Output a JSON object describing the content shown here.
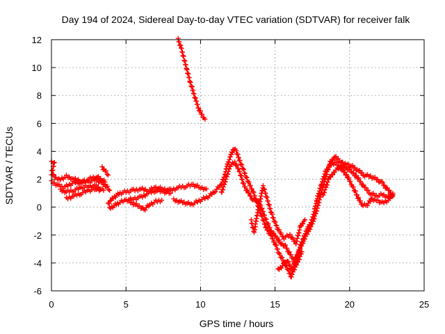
{
  "chart_data": {
    "type": "scatter",
    "title": "Day 194 of 2024, Sidereal Day-to-day VTEC variation (SDTVAR) for receiver falk",
    "xlabel": "GPS time / hours",
    "ylabel": "SDTVAR / TECUs",
    "xlim": [
      0,
      25
    ],
    "ylim": [
      -6,
      12
    ],
    "xticks": [
      0,
      5,
      10,
      15,
      20,
      25
    ],
    "yticks": [
      -6,
      -4,
      -2,
      0,
      2,
      4,
      6,
      8,
      10,
      12
    ],
    "grid": true,
    "marker": "+",
    "color": "#ff0000",
    "series": [
      {
        "name": "track-a",
        "points": [
          [
            0.0,
            3.2
          ],
          [
            0.2,
            3.2
          ],
          [
            0.0,
            2.4
          ],
          [
            0.3,
            2.1
          ],
          [
            0.6,
            2.0
          ],
          [
            1.0,
            2.2
          ],
          [
            1.5,
            2.0
          ],
          [
            2.0,
            1.9
          ],
          [
            2.5,
            1.8
          ],
          [
            3.0,
            2.0
          ],
          [
            3.4,
            1.7
          ],
          [
            3.7,
            1.5
          ],
          [
            3.9,
            1.2
          ]
        ]
      },
      {
        "name": "track-b",
        "points": [
          [
            0.0,
            1.8
          ],
          [
            0.4,
            1.6
          ],
          [
            0.8,
            1.4
          ],
          [
            1.2,
            1.6
          ],
          [
            1.6,
            1.8
          ],
          [
            2.0,
            1.7
          ],
          [
            2.5,
            2.0
          ],
          [
            3.0,
            2.2
          ],
          [
            3.3,
            2.0
          ],
          [
            3.6,
            1.8
          ]
        ]
      },
      {
        "name": "track-c",
        "points": [
          [
            0.6,
            1.2
          ],
          [
            1.0,
            1.1
          ],
          [
            1.5,
            1.2
          ],
          [
            2.0,
            1.4
          ],
          [
            2.5,
            1.5
          ],
          [
            3.0,
            1.5
          ],
          [
            3.3,
            1.3
          ]
        ]
      },
      {
        "name": "track-d",
        "points": [
          [
            1.0,
            0.6
          ],
          [
            1.5,
            0.8
          ],
          [
            2.0,
            1.0
          ],
          [
            2.5,
            1.2
          ],
          [
            3.0,
            1.3
          ],
          [
            3.5,
            1.2
          ]
        ]
      },
      {
        "name": "track-e",
        "points": [
          [
            3.4,
            2.8
          ],
          [
            3.6,
            2.6
          ],
          [
            3.8,
            2.3
          ]
        ]
      },
      {
        "name": "track-f",
        "points": [
          [
            3.8,
            0.2
          ],
          [
            4.0,
            0.5
          ],
          [
            4.3,
            0.8
          ],
          [
            4.6,
            1.0
          ],
          [
            5.0,
            1.1
          ],
          [
            5.5,
            1.2
          ],
          [
            6.0,
            1.3
          ],
          [
            6.5,
            1.2
          ],
          [
            7.0,
            1.4
          ],
          [
            7.5,
            1.3
          ],
          [
            8.0,
            1.2
          ],
          [
            8.5,
            1.4
          ],
          [
            9.0,
            1.5
          ],
          [
            9.5,
            1.6
          ],
          [
            10.0,
            1.4
          ],
          [
            10.4,
            1.3
          ]
        ]
      },
      {
        "name": "track-g",
        "points": [
          [
            3.9,
            -0.1
          ],
          [
            4.2,
            0.1
          ],
          [
            4.5,
            0.3
          ],
          [
            5.0,
            0.5
          ],
          [
            5.5,
            0.6
          ],
          [
            6.0,
            0.7
          ],
          [
            6.5,
            1.0
          ],
          [
            7.0,
            1.2
          ],
          [
            7.5,
            1.1
          ],
          [
            8.0,
            1.0
          ]
        ]
      },
      {
        "name": "track-h",
        "points": [
          [
            5.2,
            0.4
          ],
          [
            5.6,
            0.2
          ],
          [
            6.0,
            0.0
          ],
          [
            6.2,
            -0.2
          ],
          [
            6.6,
            0.2
          ],
          [
            7.0,
            0.4
          ],
          [
            7.4,
            0.5
          ]
        ]
      },
      {
        "name": "track-i",
        "points": [
          [
            8.5,
            12.0
          ],
          [
            8.7,
            11.4
          ],
          [
            8.9,
            10.6
          ],
          [
            9.1,
            9.8
          ],
          [
            9.3,
            9.0
          ],
          [
            9.5,
            8.3
          ],
          [
            9.7,
            7.6
          ],
          [
            9.9,
            7.0
          ],
          [
            10.1,
            6.6
          ],
          [
            10.3,
            6.3
          ]
        ]
      },
      {
        "name": "track-j",
        "points": [
          [
            8.2,
            0.5
          ],
          [
            8.6,
            0.4
          ],
          [
            9.0,
            0.3
          ],
          [
            9.4,
            0.2
          ],
          [
            9.8,
            0.4
          ],
          [
            10.2,
            0.6
          ],
          [
            10.6,
            0.8
          ],
          [
            11.0,
            1.2
          ],
          [
            11.4,
            1.6
          ],
          [
            11.6,
            2.2
          ],
          [
            11.8,
            3.0
          ],
          [
            12.0,
            3.6
          ],
          [
            12.2,
            4.2
          ],
          [
            12.4,
            4.0
          ],
          [
            12.6,
            3.4
          ],
          [
            12.9,
            2.6
          ],
          [
            13.2,
            1.8
          ],
          [
            13.5,
            1.2
          ],
          [
            13.8,
            0.3
          ],
          [
            14.1,
            -0.6
          ],
          [
            14.4,
            -1.5
          ],
          [
            14.7,
            -2.0
          ],
          [
            15.0,
            -2.6
          ],
          [
            15.3,
            -3.4
          ],
          [
            15.6,
            -3.9
          ],
          [
            15.9,
            -4.6
          ],
          [
            16.1,
            -5.0
          ],
          [
            16.3,
            -4.0
          ],
          [
            16.6,
            -3.2
          ],
          [
            16.9,
            -2.4
          ],
          [
            17.2,
            -1.8
          ],
          [
            17.5,
            -1.2
          ],
          [
            17.8,
            -0.2
          ],
          [
            18.1,
            1.0
          ],
          [
            18.4,
            2.2
          ],
          [
            18.7,
            3.2
          ],
          [
            19.0,
            3.6
          ],
          [
            19.4,
            3.3
          ],
          [
            19.8,
            2.8
          ],
          [
            20.2,
            2.5
          ],
          [
            20.6,
            2.0
          ],
          [
            21.0,
            1.4
          ],
          [
            21.4,
            1.0
          ],
          [
            21.8,
            0.8
          ],
          [
            22.2,
            0.9
          ],
          [
            22.6,
            0.7
          ],
          [
            22.9,
            1.0
          ]
        ]
      },
      {
        "name": "track-k",
        "points": [
          [
            11.4,
            1.0
          ],
          [
            11.7,
            2.0
          ],
          [
            12.0,
            3.0
          ],
          [
            12.3,
            3.2
          ],
          [
            12.6,
            2.6
          ],
          [
            12.9,
            1.6
          ],
          [
            13.2,
            1.0
          ],
          [
            13.5,
            0.6
          ],
          [
            13.8,
            0.4
          ],
          [
            14.0,
            0.2
          ],
          [
            14.2,
            -0.4
          ],
          [
            14.5,
            -1.2
          ],
          [
            14.8,
            -1.8
          ],
          [
            15.1,
            -2.2
          ],
          [
            15.4,
            -2.6
          ],
          [
            15.7,
            -2.8
          ],
          [
            16.0,
            -3.4
          ],
          [
            16.3,
            -3.9
          ],
          [
            16.6,
            -3.1
          ],
          [
            16.9,
            -2.2
          ],
          [
            17.2,
            -1.5
          ],
          [
            17.5,
            -0.9
          ],
          [
            17.8,
            0.5
          ],
          [
            18.1,
            1.6
          ],
          [
            18.4,
            2.6
          ],
          [
            18.7,
            3.0
          ],
          [
            19.0,
            3.2
          ],
          [
            19.4,
            2.8
          ],
          [
            19.8,
            2.3
          ],
          [
            20.2,
            1.5
          ],
          [
            20.6,
            0.6
          ],
          [
            20.9,
            0.1
          ],
          [
            21.2,
            0.2
          ],
          [
            21.5,
            0.6
          ],
          [
            21.8,
            0.5
          ],
          [
            22.2,
            0.3
          ],
          [
            22.6,
            0.5
          ],
          [
            22.9,
            0.9
          ]
        ]
      },
      {
        "name": "track-l",
        "points": [
          [
            13.4,
            -1.0
          ],
          [
            13.6,
            -1.8
          ],
          [
            13.8,
            -0.5
          ],
          [
            14.2,
            1.5
          ],
          [
            14.5,
            0.5
          ],
          [
            14.8,
            -0.6
          ],
          [
            15.2,
            -1.6
          ],
          [
            15.6,
            -2.2
          ],
          [
            16.0,
            -2.0
          ],
          [
            16.4,
            -2.6
          ],
          [
            16.7,
            -1.4
          ],
          [
            17.0,
            -0.9
          ]
        ]
      },
      {
        "name": "track-m",
        "points": [
          [
            15.2,
            -4.5
          ],
          [
            15.5,
            -4.2
          ],
          [
            15.8,
            -3.8
          ],
          [
            16.0,
            -4.2
          ],
          [
            16.2,
            -4.6
          ],
          [
            16.5,
            -4.0
          ],
          [
            16.8,
            -3.2
          ]
        ]
      },
      {
        "name": "track-n",
        "points": [
          [
            18.2,
            0.8
          ],
          [
            18.6,
            2.0
          ],
          [
            19.0,
            2.6
          ],
          [
            19.4,
            2.9
          ],
          [
            19.8,
            3.1
          ],
          [
            20.2,
            2.9
          ],
          [
            20.6,
            2.6
          ],
          [
            21.0,
            2.3
          ],
          [
            21.4,
            2.2
          ],
          [
            21.8,
            2.0
          ],
          [
            22.2,
            1.7
          ],
          [
            22.6,
            1.2
          ],
          [
            22.9,
            0.8
          ]
        ]
      }
    ]
  }
}
